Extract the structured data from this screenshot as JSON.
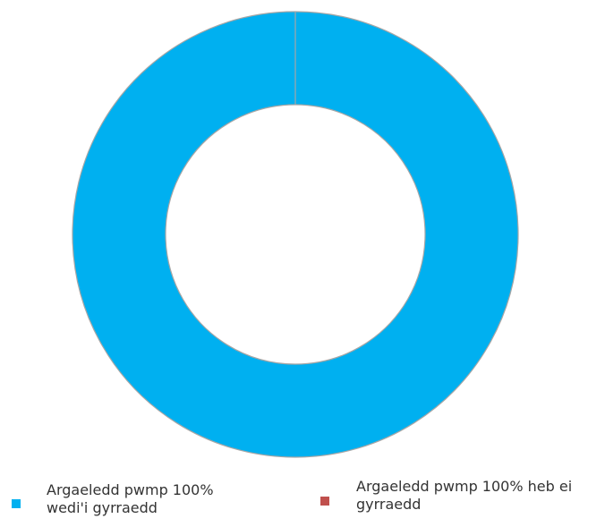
{
  "chart_data": {
    "type": "pie",
    "donut": true,
    "title": "",
    "legend_position": "bottom",
    "slices": [
      {
        "label": "Argaeledd pwmp 100% wedi'i gyrraedd",
        "legend_lines": [
          "Argaeledd pwmp 100%",
          "wedi'i gyrraedd"
        ],
        "value": 100,
        "color": "#00b0f0"
      },
      {
        "label": "Argaeledd pwmp 100% heb ei gyrraedd",
        "legend_lines": [
          "Argaeledd pwmp 100% heb ei",
          "gyrraedd"
        ],
        "value": 0,
        "color": "#c0504d"
      }
    ]
  }
}
